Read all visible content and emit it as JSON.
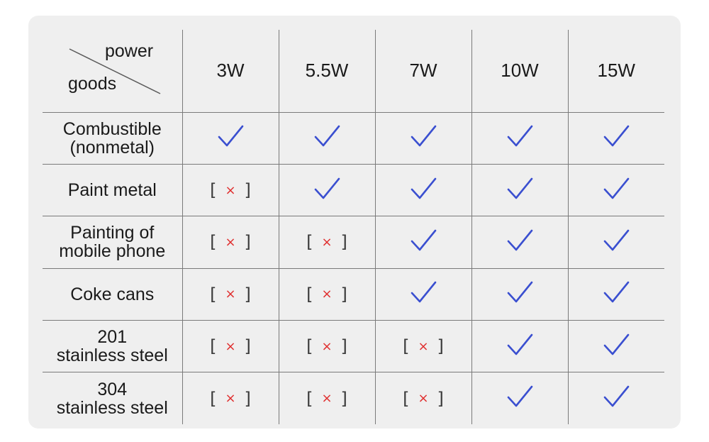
{
  "corner": {
    "top": "power",
    "bottom": "goods"
  },
  "powers": [
    "3W",
    "5.5W",
    "7W",
    "10W",
    "15W"
  ],
  "colors": {
    "check": "#3a4fd0",
    "cross": "#e03030",
    "bracket": "#3a3a3a"
  },
  "rows": [
    {
      "label_lines": [
        "Combustible",
        "(nonmetal)"
      ],
      "cells": [
        "check",
        "check",
        "check",
        "check",
        "check"
      ]
    },
    {
      "label_lines": [
        "Paint metal"
      ],
      "cells": [
        "cross",
        "check",
        "check",
        "check",
        "check"
      ]
    },
    {
      "label_lines": [
        "Painting of",
        "mobile phone"
      ],
      "cells": [
        "cross",
        "cross",
        "check",
        "check",
        "check"
      ]
    },
    {
      "label_lines": [
        "Coke cans"
      ],
      "cells": [
        "cross",
        "cross",
        "check",
        "check",
        "check"
      ]
    },
    {
      "label_lines": [
        "201",
        "stainless steel"
      ],
      "cells": [
        "cross",
        "cross",
        "cross",
        "check",
        "check"
      ]
    },
    {
      "label_lines": [
        "304",
        "stainless steel"
      ],
      "cells": [
        "cross",
        "cross",
        "cross",
        "check",
        "check"
      ]
    }
  ],
  "symbols": {
    "cross_left": "[",
    "cross_mark": "×",
    "cross_right": "]"
  }
}
